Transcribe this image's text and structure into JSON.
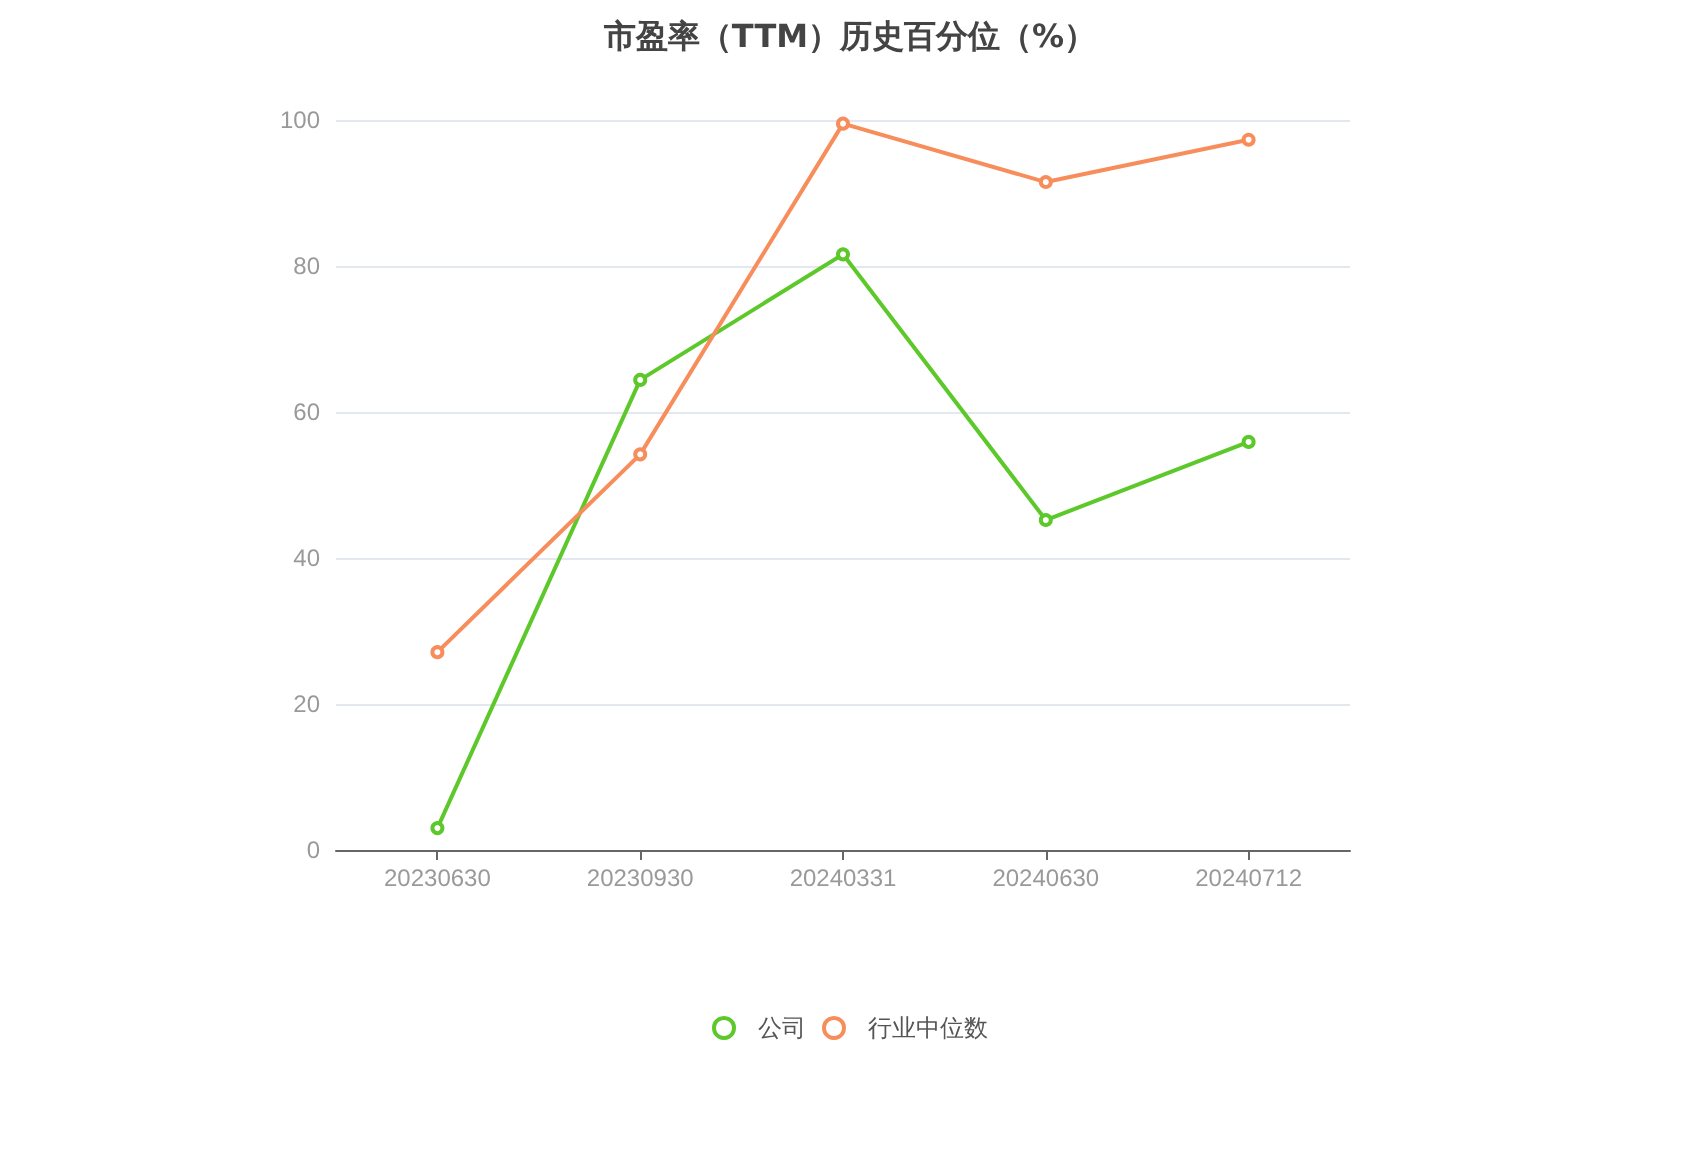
{
  "chart_data": {
    "type": "line",
    "title": "市盈率（TTM）历史百分位（%）",
    "categories": [
      "20230630",
      "20230930",
      "20240331",
      "20240630",
      "20240712"
    ],
    "series": [
      {
        "name": "公司",
        "color": "#5cc82a",
        "values": [
          3.0,
          64.4,
          81.6,
          45.2,
          55.9
        ]
      },
      {
        "name": "行业中位数",
        "color": "#f88d5c",
        "values": [
          27.1,
          54.2,
          99.5,
          91.5,
          97.3
        ]
      }
    ],
    "ylim": [
      0,
      100
    ],
    "yticks": [
      0,
      20,
      40,
      60,
      80,
      100
    ],
    "grid": "y",
    "legend": "bottom",
    "marker": "circle",
    "line_style": "solid"
  }
}
